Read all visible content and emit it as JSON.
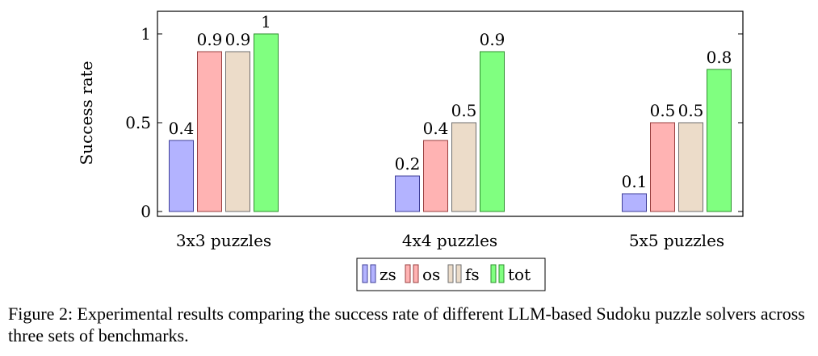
{
  "chart_data": {
    "type": "bar",
    "categories": [
      "3x3 puzzles",
      "4x4 puzzles",
      "5x5 puzzles"
    ],
    "series": [
      {
        "name": "zs",
        "values": [
          0.4,
          0.2,
          0.1
        ],
        "color": "#b3b3ff",
        "stroke": "#3f3f99"
      },
      {
        "name": "os",
        "values": [
          0.9,
          0.4,
          0.5
        ],
        "color": "#ffb3b3",
        "stroke": "#993f3f"
      },
      {
        "name": "fs",
        "values": [
          0.9,
          0.5,
          0.5
        ],
        "color": "#ecdcc9",
        "stroke": "#6e6e6e"
      },
      {
        "name": "tot",
        "values": [
          1,
          0.9,
          0.8
        ],
        "color": "#80ff80",
        "stroke": "#2e8f2e"
      }
    ],
    "ylabel": "Success rate",
    "xlabel": "",
    "ylim": [
      0,
      1.1
    ],
    "yticks": [
      0,
      0.5,
      1
    ],
    "ytick_labels": [
      "0",
      "0.5",
      "1"
    ],
    "data_labels": [
      [
        "0.4",
        "0.2",
        "0.1"
      ],
      [
        "0.9",
        "0.4",
        "0.5"
      ],
      [
        "0.9",
        "0.5",
        "0.5"
      ],
      [
        "1",
        "0.9",
        "0.8"
      ]
    ],
    "legend_position": "bottom-center"
  },
  "caption": "Figure 2: Experimental results comparing the success rate of different LLM-based Sudoku puzzle solvers across three sets of benchmarks."
}
